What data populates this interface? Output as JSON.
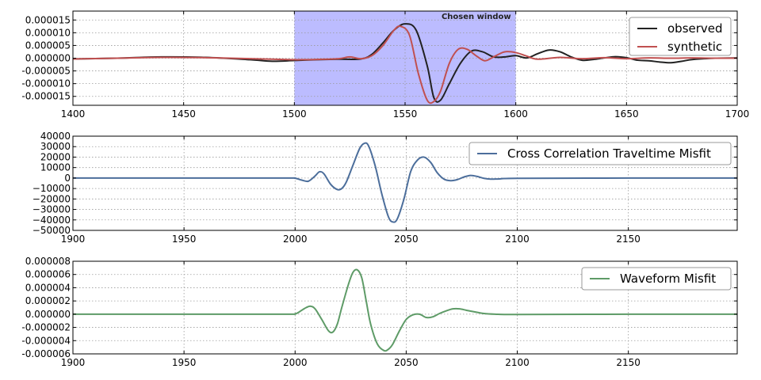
{
  "chart_data": [
    {
      "type": "line",
      "title": "",
      "xlabel": "",
      "ylabel": "",
      "xlim": [
        1400,
        1700
      ],
      "ylim": [
        -1.85e-05,
        1.85e-05
      ],
      "xticks": [
        1400,
        1450,
        1500,
        1550,
        1600,
        1650,
        1700
      ],
      "xtick_labels": [
        "1400",
        "1450",
        "1500",
        "1550",
        "1600",
        "1650",
        "1700"
      ],
      "yticks": [
        1.5e-05,
        1e-05,
        5e-06,
        0,
        -5e-06,
        -1e-05,
        -1.5e-05
      ],
      "ytick_labels": [
        "0.000015",
        "0.000010",
        "0.000005",
        "0.000000",
        "-0.000005",
        "-0.000010",
        "-0.000015"
      ],
      "grid": true,
      "legend": "top-right",
      "window": {
        "label": "Chosen window",
        "x_start": 1500,
        "x_end": 1600,
        "color": "#bcbcff"
      },
      "series": [
        {
          "name": "observed",
          "color": "#222222",
          "x": [
            1400,
            1420,
            1440,
            1460,
            1480,
            1490,
            1500,
            1510,
            1520,
            1530,
            1535,
            1540,
            1545,
            1550,
            1555,
            1560,
            1563,
            1566,
            1570,
            1575,
            1580,
            1585,
            1590,
            1595,
            1600,
            1605,
            1610,
            1615,
            1620,
            1625,
            1630,
            1635,
            1640,
            1645,
            1650,
            1655,
            1660,
            1665,
            1670,
            1675,
            1680,
            1690,
            1700
          ],
          "y": [
            -3e-07,
            0,
            5e-07,
            3e-07,
            -6e-07,
            -1.2e-06,
            -9e-07,
            -6e-07,
            -4e-07,
            -3e-07,
            1.5e-06,
            6e-06,
            1.1e-05,
            1.35e-05,
            1.1e-05,
            -3e-06,
            -1.55e-05,
            -1.65e-05,
            -1e-05,
            -2e-06,
            2.8e-06,
            2.5e-06,
            5e-07,
            5e-07,
            1e-06,
            1e-07,
            1.8e-06,
            3.2e-06,
            2.5e-06,
            5e-07,
            -8e-07,
            -5e-07,
            1e-07,
            6e-07,
            2e-07,
            -8e-07,
            -1e-06,
            -1.5e-06,
            -1.8e-06,
            -1.2e-06,
            -5e-07,
            0,
            1e-07
          ]
        },
        {
          "name": "synthetic",
          "color": "#c05050",
          "x": [
            1400,
            1420,
            1440,
            1460,
            1480,
            1490,
            1500,
            1510,
            1520,
            1525,
            1530,
            1535,
            1540,
            1545,
            1548,
            1552,
            1556,
            1560,
            1563,
            1566,
            1570,
            1574,
            1578,
            1582,
            1586,
            1590,
            1595,
            1600,
            1605,
            1610,
            1620,
            1630,
            1640,
            1650,
            1660,
            1670,
            1680,
            1690,
            1700
          ],
          "y": [
            -3e-07,
            0,
            3e-07,
            2e-07,
            -2e-07,
            -4e-07,
            -6e-07,
            -5e-07,
            -2e-07,
            5e-07,
            -2e-07,
            1e-06,
            5e-06,
            1.1e-05,
            1.25e-05,
            9e-06,
            -6e-06,
            -1.65e-05,
            -1.7e-05,
            -1.3e-05,
            -2e-06,
            3.5e-06,
            3.5e-06,
            1e-06,
            -1e-06,
            5e-07,
            2.5e-06,
            2.2e-06,
            8e-07,
            -4e-07,
            3e-07,
            -2e-07,
            2e-07,
            -2e-07,
            1e-07,
            0,
            1e-07,
            0,
            0
          ]
        }
      ]
    },
    {
      "type": "line",
      "title": "",
      "xlabel": "",
      "ylabel": "",
      "xlim": [
        1900,
        2199
      ],
      "ylim": [
        -50000,
        40000
      ],
      "xticks": [
        1900,
        1950,
        2000,
        2050,
        2100,
        2150
      ],
      "xtick_labels": [
        "1900",
        "1950",
        "2000",
        "2050",
        "2100",
        "2150"
      ],
      "yticks": [
        40000,
        30000,
        20000,
        10000,
        0,
        -10000,
        -20000,
        -30000,
        -40000,
        -50000
      ],
      "ytick_labels": [
        "40000",
        "30000",
        "20000",
        "10000",
        "0",
        "−10000",
        "−20000",
        "−30000",
        "−40000",
        "−50000"
      ],
      "grid": true,
      "legend": "top-right",
      "series": [
        {
          "name": "Cross Correlation Traveltime Misfit",
          "color": "#4c6e9b",
          "x": [
            1900,
            1950,
            1995,
            2000,
            2003,
            2006,
            2009,
            2011,
            2013,
            2016,
            2019,
            2021,
            2023,
            2026,
            2029,
            2031,
            2033,
            2036,
            2039,
            2042,
            2044,
            2046,
            2049,
            2052,
            2055,
            2058,
            2061,
            2064,
            2067,
            2070,
            2073,
            2076,
            2079,
            2082,
            2085,
            2088,
            2092,
            2100,
            2150,
            2199
          ],
          "y": [
            0,
            0,
            0,
            -200,
            -2000,
            -3000,
            2000,
            6000,
            4000,
            -6000,
            -11000,
            -10000,
            -4000,
            12000,
            28000,
            33000,
            31000,
            12000,
            -15000,
            -37000,
            -42000,
            -39000,
            -20000,
            6000,
            17000,
            20000,
            15000,
            5000,
            -1000,
            -2500,
            -1500,
            1000,
            2500,
            1500,
            -300,
            -1000,
            -800,
            -300,
            0,
            0
          ]
        }
      ]
    },
    {
      "type": "line",
      "title": "",
      "xlabel": "",
      "ylabel": "",
      "xlim": [
        1900,
        2199
      ],
      "ylim": [
        -6e-06,
        8e-06
      ],
      "xticks": [
        1900,
        1950,
        2000,
        2050,
        2100,
        2150
      ],
      "xtick_labels": [
        "1900",
        "1950",
        "2000",
        "2050",
        "2100",
        "2150"
      ],
      "yticks": [
        8e-06,
        6e-06,
        4e-06,
        2e-06,
        0,
        -2e-06,
        -4e-06,
        -6e-06
      ],
      "ytick_labels": [
        "0.000008",
        "0.000006",
        "0.000004",
        "0.000002",
        "0.000000",
        "-0.000002",
        "-0.000004",
        "-0.000006"
      ],
      "grid": true,
      "legend": "top-right",
      "series": [
        {
          "name": "Waveform Misfit",
          "color": "#5e9b67",
          "x": [
            1900,
            1950,
            1995,
            2000,
            2003,
            2005,
            2007,
            2009,
            2012,
            2015,
            2017,
            2019,
            2021,
            2024,
            2026,
            2028,
            2030,
            2032,
            2034,
            2037,
            2040,
            2042,
            2044,
            2047,
            2050,
            2053,
            2056,
            2059,
            2062,
            2065,
            2068,
            2071,
            2074,
            2077,
            2080,
            2085,
            2090,
            2100,
            2150,
            2199
          ],
          "y": [
            0,
            0,
            0,
            5e-08,
            6e-07,
            1e-06,
            1.2e-06,
            8e-07,
            -8e-07,
            -2.5e-06,
            -2.7e-06,
            -1.5e-06,
            1e-06,
            4.5e-06,
            6.3e-06,
            6.7e-06,
            5.5e-06,
            2e-06,
            -1.5e-06,
            -4.5e-06,
            -5.5e-06,
            -5.3e-06,
            -4.5e-06,
            -2.5e-06,
            -8e-07,
            -1e-07,
            0,
            -5e-07,
            -4e-07,
            1e-07,
            5e-07,
            8e-07,
            8e-07,
            6e-07,
            4e-07,
            1e-07,
            0,
            -5e-08,
            0,
            0
          ]
        }
      ]
    }
  ]
}
